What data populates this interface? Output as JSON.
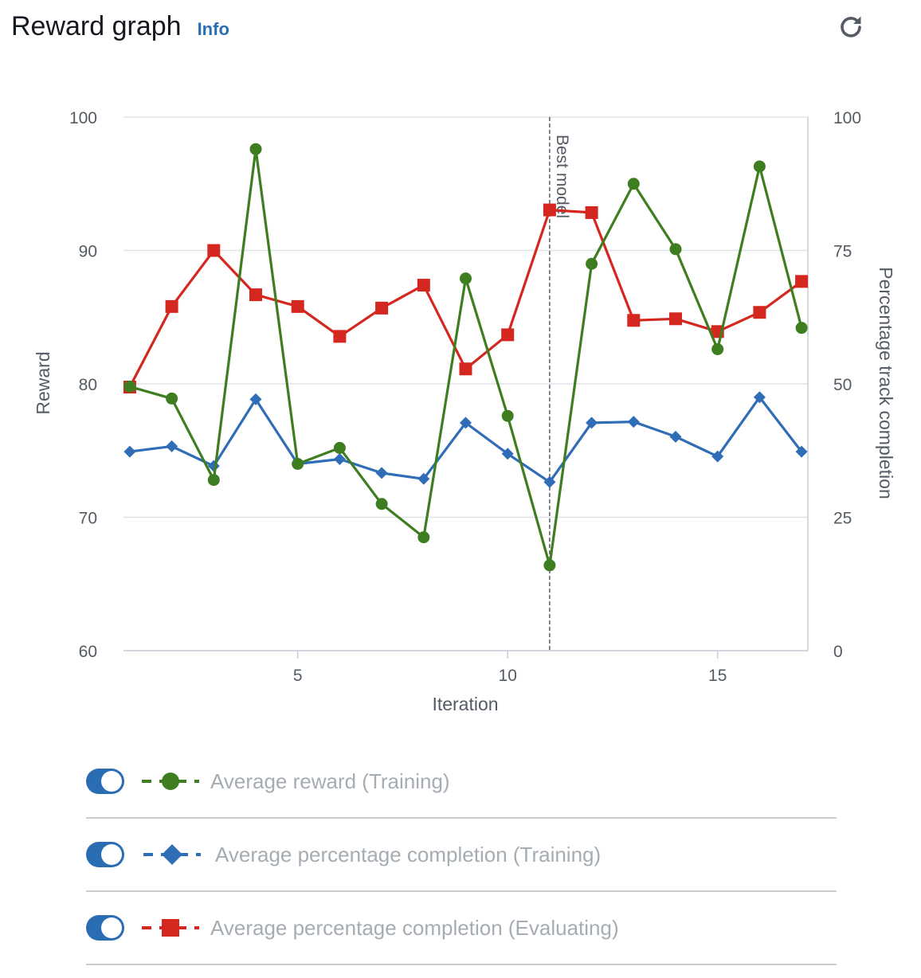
{
  "header": {
    "title": "Reward graph",
    "info_label": "Info"
  },
  "legend": [
    {
      "label": "Average reward (Training)",
      "color": "#3e7e20",
      "marker": "circle",
      "enabled": true
    },
    {
      "label": "Average percentage completion (Training)",
      "color": "#2f6db6",
      "marker": "diamond",
      "enabled": true
    },
    {
      "label": "Average percentage completion (Evaluating)",
      "color": "#d4271f",
      "marker": "square",
      "enabled": true
    }
  ],
  "chart_data": {
    "type": "line",
    "xlabel": "Iteration",
    "ylabel": "Reward",
    "y2label": "Percentage track completion",
    "x": [
      1,
      2,
      3,
      4,
      5,
      6,
      7,
      8,
      9,
      10,
      11,
      12,
      13,
      14,
      15,
      16,
      17
    ],
    "xlim": [
      0.85,
      17.15
    ],
    "xticks": [
      5,
      10,
      15
    ],
    "ylim": [
      60,
      100
    ],
    "yticks": [
      60,
      70,
      80,
      90,
      100
    ],
    "y2lim": [
      0,
      100
    ],
    "y2ticks": [
      0,
      25,
      50,
      75,
      100
    ],
    "grid": true,
    "best_model": {
      "x": 11,
      "label": "Best model"
    },
    "series": [
      {
        "name": "Average reward (Training)",
        "axis": "left",
        "color": "#3e7e20",
        "marker": "circle",
        "values": [
          79.8,
          78.9,
          72.8,
          97.6,
          74.0,
          75.2,
          71.0,
          68.5,
          87.9,
          77.6,
          66.4,
          89.0,
          95.0,
          90.1,
          82.6,
          96.3,
          84.2
        ]
      },
      {
        "name": "Average percentage completion (Training)",
        "axis": "right",
        "color": "#2f6db6",
        "marker": "diamond",
        "values": [
          37.3,
          38.3,
          34.6,
          47.1,
          35.0,
          35.9,
          33.3,
          32.2,
          42.7,
          36.9,
          31.6,
          42.7,
          42.9,
          40.1,
          36.4,
          47.5,
          37.3
        ]
      },
      {
        "name": "Average percentage completion (Evaluating)",
        "axis": "right",
        "color": "#d4271f",
        "marker": "square",
        "values": [
          49.4,
          64.5,
          75.0,
          66.7,
          64.5,
          58.9,
          64.2,
          68.5,
          52.8,
          59.2,
          82.6,
          82.1,
          61.9,
          62.2,
          59.8,
          63.4,
          69.2
        ]
      }
    ]
  }
}
